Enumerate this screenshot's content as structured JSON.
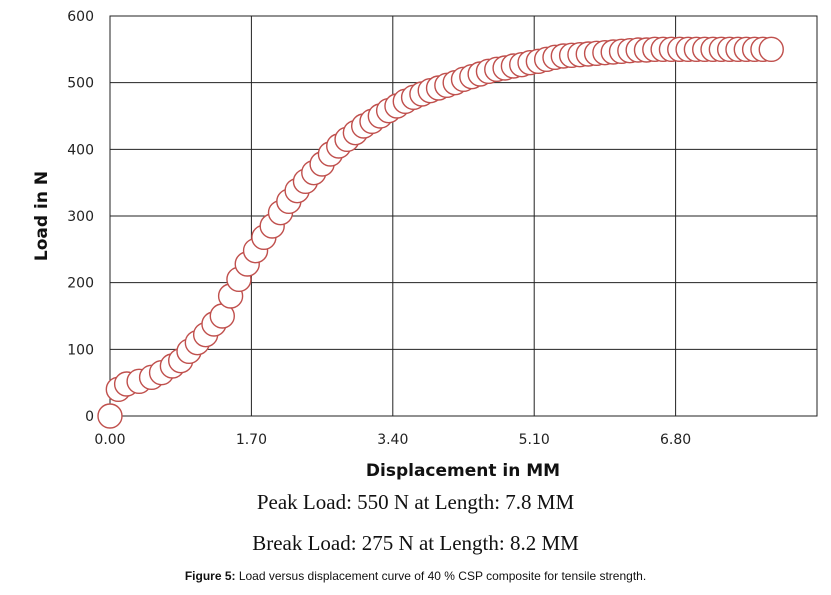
{
  "chart_data": {
    "type": "scatter",
    "xlabel": "Displacement in MM",
    "ylabel": "Load in N",
    "xlim": [
      0,
      8.5
    ],
    "ylim": [
      0,
      600
    ],
    "x_ticks": [
      "0.00",
      "1.70",
      "3.40",
      "5.10",
      "6.80"
    ],
    "y_ticks": [
      "0",
      "100",
      "200",
      "300",
      "400",
      "500",
      "600"
    ],
    "grid": true,
    "marker": "open-circle",
    "marker_color": "#c0504d",
    "x": [
      0.0,
      0.1,
      0.2,
      0.35,
      0.5,
      0.62,
      0.75,
      0.85,
      0.95,
      1.05,
      1.15,
      1.25,
      1.35,
      1.45,
      1.55,
      1.65,
      1.75,
      1.85,
      1.95,
      2.05,
      2.15,
      2.25,
      2.35,
      2.45,
      2.55,
      2.65,
      2.75,
      2.85,
      2.95,
      3.05,
      3.15,
      3.25,
      3.35,
      3.45,
      3.55,
      3.65,
      3.75,
      3.85,
      3.95,
      4.05,
      4.15,
      4.25,
      4.35,
      4.45,
      4.55,
      4.65,
      4.75,
      4.85,
      4.95,
      5.05,
      5.15,
      5.25,
      5.35,
      5.45,
      5.55,
      5.65,
      5.75,
      5.85,
      5.95,
      6.05,
      6.15,
      6.25,
      6.35,
      6.45,
      6.55,
      6.65,
      6.75,
      6.85,
      6.95,
      7.05,
      7.15,
      7.25,
      7.35,
      7.45,
      7.55,
      7.65,
      7.75,
      7.85,
      7.95
    ],
    "y": [
      0,
      40,
      48,
      52,
      58,
      65,
      75,
      83,
      97,
      110,
      122,
      138,
      150,
      180,
      205,
      228,
      248,
      268,
      285,
      305,
      322,
      338,
      352,
      365,
      378,
      393,
      405,
      415,
      425,
      435,
      442,
      450,
      458,
      465,
      472,
      478,
      483,
      488,
      492,
      496,
      500,
      505,
      509,
      513,
      517,
      520,
      522,
      525,
      527,
      530,
      532,
      535,
      538,
      540,
      541,
      542,
      543,
      544,
      545,
      546,
      547,
      548,
      549,
      549,
      550,
      550,
      550,
      550,
      550,
      550,
      550,
      550,
      550,
      550,
      550,
      550,
      550,
      550,
      550
    ]
  },
  "notes": {
    "peak": "Peak Load: 550 N at Length: 7.8 MM",
    "break": "Break Load: 275 N at Length: 8.2 MM"
  },
  "caption": {
    "label": "Figure 5:",
    "text": " Load versus displacement curve of 40 % CSP composite for tensile strength."
  }
}
